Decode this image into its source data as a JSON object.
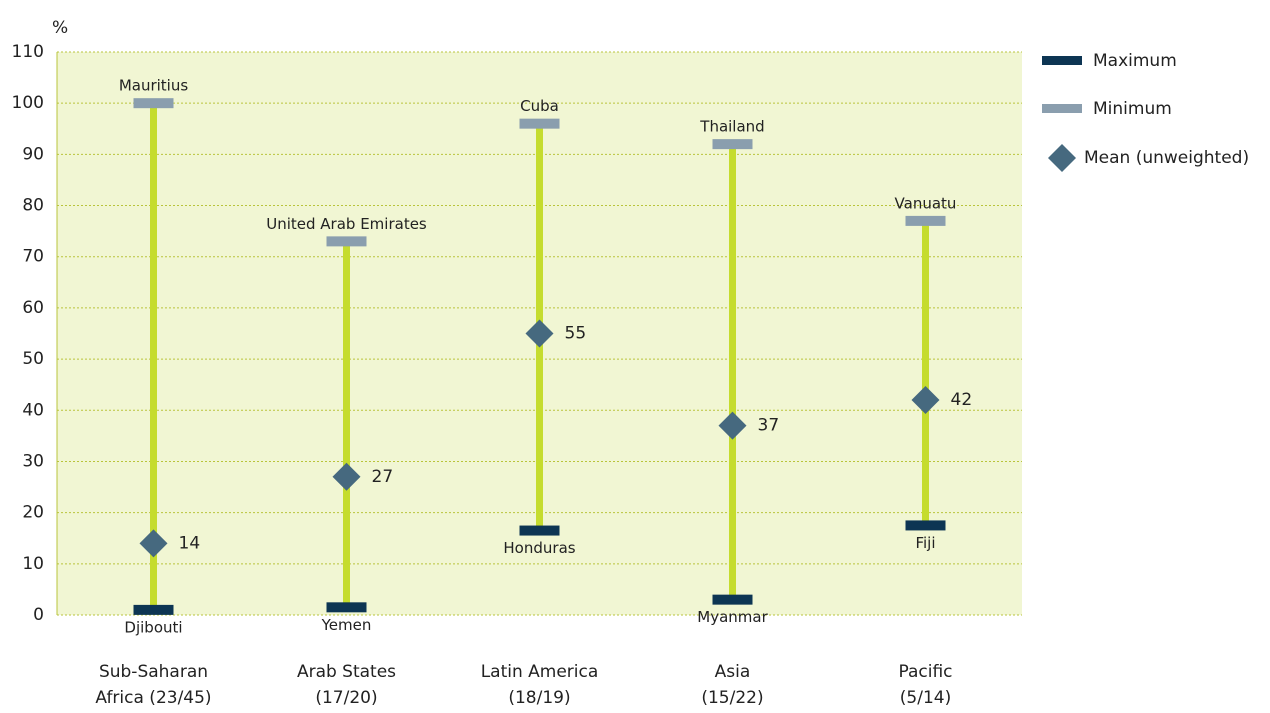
{
  "chart_data": {
    "type": "range",
    "y_label": "%",
    "categories": [
      [
        "Sub-Saharan",
        "Africa (23/45)"
      ],
      [
        "Arab States",
        "(17/20)"
      ],
      [
        "Latin America",
        "(18/19)"
      ],
      [
        "Asia",
        "(15/22)"
      ],
      [
        "Pacific",
        "(5/14)"
      ]
    ],
    "series": [
      {
        "name": "Maximum",
        "color": "#0d3553",
        "values": [
          1,
          1.5,
          16.5,
          3,
          17.5
        ],
        "labels": [
          "Djibouti",
          "Yemen",
          "Honduras",
          "Myanmar",
          "Fiji"
        ]
      },
      {
        "name": "Minimum",
        "color": "#8a9eae",
        "values": [
          100,
          73,
          96,
          92,
          77
        ],
        "labels": [
          "Mauritius",
          "United Arab Emirates",
          "Cuba",
          "Thailand",
          "Vanuatu"
        ]
      },
      {
        "name": "Mean (unweighted)",
        "color": "#46697f",
        "values": [
          14,
          27,
          55,
          37,
          42
        ]
      }
    ],
    "stem_color": "#c5dc2e",
    "plot_background": "#f1f6d3",
    "ylim": [
      0,
      110
    ],
    "yticks": [
      0,
      10,
      20,
      30,
      40,
      50,
      60,
      70,
      80,
      90,
      100,
      110
    ],
    "grid": true,
    "legend": "right"
  }
}
